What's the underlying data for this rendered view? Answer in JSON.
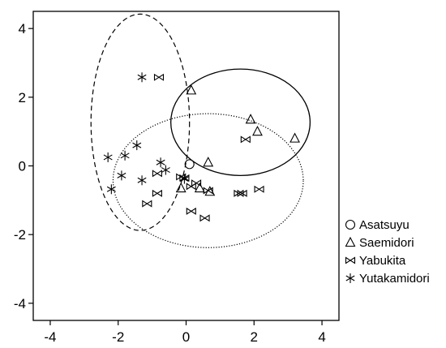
{
  "chart_data": {
    "type": "scatter",
    "title": "",
    "xlabel": "",
    "ylabel": "",
    "xlim": [
      -4.5,
      4.5
    ],
    "ylim": [
      -4.5,
      4.5
    ],
    "xticks": [
      -4,
      -2,
      0,
      2,
      4
    ],
    "yticks": [
      -4,
      -2,
      0,
      2,
      4
    ],
    "grid": false,
    "legend_position": "right",
    "series": [
      {
        "name": "Asatsuyu",
        "marker": "circle",
        "points": [
          [
            0.1,
            0.05
          ]
        ]
      },
      {
        "name": "Saemidori",
        "marker": "triangle",
        "points": [
          [
            0.15,
            2.2
          ],
          [
            1.9,
            1.35
          ],
          [
            2.1,
            1.0
          ],
          [
            3.2,
            0.8
          ],
          [
            0.65,
            0.1
          ],
          [
            -0.15,
            -0.65
          ],
          [
            0.4,
            -0.65
          ],
          [
            0.7,
            -0.75
          ]
        ]
      },
      {
        "name": "Yabukita",
        "marker": "bowtie",
        "points": [
          [
            -0.8,
            2.58
          ],
          [
            1.75,
            0.77
          ],
          [
            -0.15,
            -0.32
          ],
          [
            -0.85,
            -0.22
          ],
          [
            -0.05,
            -0.35
          ],
          [
            0.3,
            -0.5
          ],
          [
            0.15,
            -0.6
          ],
          [
            0.65,
            -0.72
          ],
          [
            -0.85,
            -0.8
          ],
          [
            1.55,
            -0.8
          ],
          [
            1.65,
            -0.8
          ],
          [
            2.15,
            -0.68
          ],
          [
            -1.15,
            -1.1
          ],
          [
            0.15,
            -1.32
          ],
          [
            0.55,
            -1.52
          ]
        ]
      },
      {
        "name": "Yutakamidori",
        "marker": "star",
        "points": [
          [
            -1.3,
            2.58
          ],
          [
            -2.3,
            0.25
          ],
          [
            -1.8,
            0.3
          ],
          [
            -1.45,
            0.6
          ],
          [
            -0.75,
            0.1
          ],
          [
            -1.9,
            -0.28
          ],
          [
            -1.3,
            -0.42
          ],
          [
            -0.6,
            -0.12
          ],
          [
            -0.05,
            -0.38
          ],
          [
            -2.2,
            -0.68
          ]
        ]
      }
    ],
    "ellipses": [
      {
        "group": "Saemidori",
        "line": "solid",
        "center": [
          1.6,
          1.27
        ],
        "rx": 2.05,
        "ry": 1.55
      },
      {
        "group": "Yutakamidori",
        "line": "dashed",
        "center": [
          -1.35,
          1.27
        ],
        "rx": 1.45,
        "ry": 3.15
      },
      {
        "group": "Yabukita",
        "line": "dotted",
        "center": [
          0.65,
          -0.43
        ],
        "rx": 2.8,
        "ry": 1.95
      }
    ]
  }
}
